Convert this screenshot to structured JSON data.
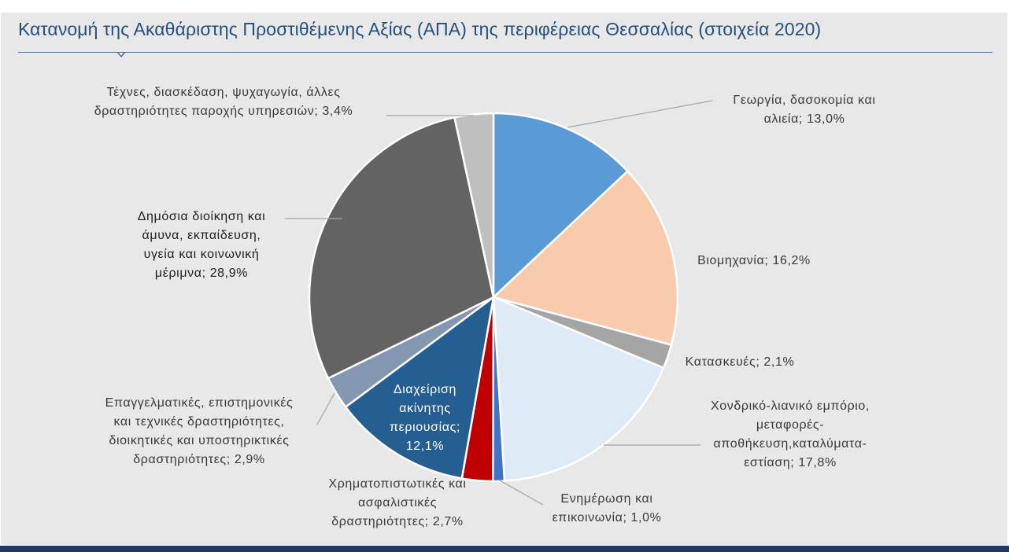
{
  "title": "Κατανομή της Ακαθάριστης Προστιθέμενης Αξίας (ΑΠΑ) της περιφέρειας Θεσσαλίας (στοιχεία 2020)",
  "chart_data": {
    "type": "pie",
    "title": "Κατανομή της Ακαθάριστης Προστιθέμενης Αξίας (ΑΠΑ) της περιφέρειας Θεσσαλίας (στοιχεία 2020)",
    "unit": "%",
    "start_angle_deg": 0,
    "direction": "clockwise",
    "slices": [
      {
        "key": "agriculture",
        "label_lines": [
          "Γεωργία, δασοκομία και",
          "αλιεία; 13,0%"
        ],
        "value": 13.0,
        "color": "#5b9bd5"
      },
      {
        "key": "industry",
        "label_lines": [
          "Βιομηχανία; 16,2%"
        ],
        "value": 16.2,
        "color": "#f8cbad"
      },
      {
        "key": "construction",
        "label_lines": [
          "Κατασκευές; 2,1%"
        ],
        "value": 2.1,
        "color": "#a5a5a5"
      },
      {
        "key": "trade",
        "label_lines": [
          "Χονδρικό-λιανικό εμπόριο,",
          "μεταφορές-",
          "αποθήκευση,καταλύματα-",
          "εστίαση; 17,8%"
        ],
        "value": 17.8,
        "color": "#deebf7"
      },
      {
        "key": "information",
        "label_lines": [
          "Ενημέρωση και",
          "επικοινωνία; 1,0%"
        ],
        "value": 1.0,
        "color": "#4472c4"
      },
      {
        "key": "finance",
        "label_lines": [
          "Χρηματοπιστωτικές και",
          "ασφαλιστικές",
          "δραστηριότητες; 2,7%"
        ],
        "value": 2.7,
        "color": "#c00000"
      },
      {
        "key": "real_estate",
        "label_lines": [
          "Διαχείριση",
          "ακίνητης",
          "περιουσίας;",
          "12,1%"
        ],
        "value": 12.1,
        "color": "#255e91"
      },
      {
        "key": "professional",
        "label_lines": [
          "Επαγγελματικές, επιστημονικές",
          "και τεχνικές δραστηριότητες,",
          "διοικητικές και υποστηρικτικές",
          "δραστηριότητες; 2,9%"
        ],
        "value": 2.9,
        "color": "#8497b0"
      },
      {
        "key": "public_admin",
        "label_lines": [
          "Δημόσια διοίκηση και",
          "άμυνα, εκπαίδευση,",
          "υγεία και κοινωνική",
          "μέριμνα; 28,9%"
        ],
        "value": 28.9,
        "color": "#636363"
      },
      {
        "key": "arts",
        "label_lines": [
          "Τέχνες, διασκέδαση, ψυχαγωγία, άλλες",
          "δραστηριότητες παροχής υπηρεσιών; 3,4%"
        ],
        "value": 3.4,
        "color": "#bfbfbf"
      }
    ]
  }
}
